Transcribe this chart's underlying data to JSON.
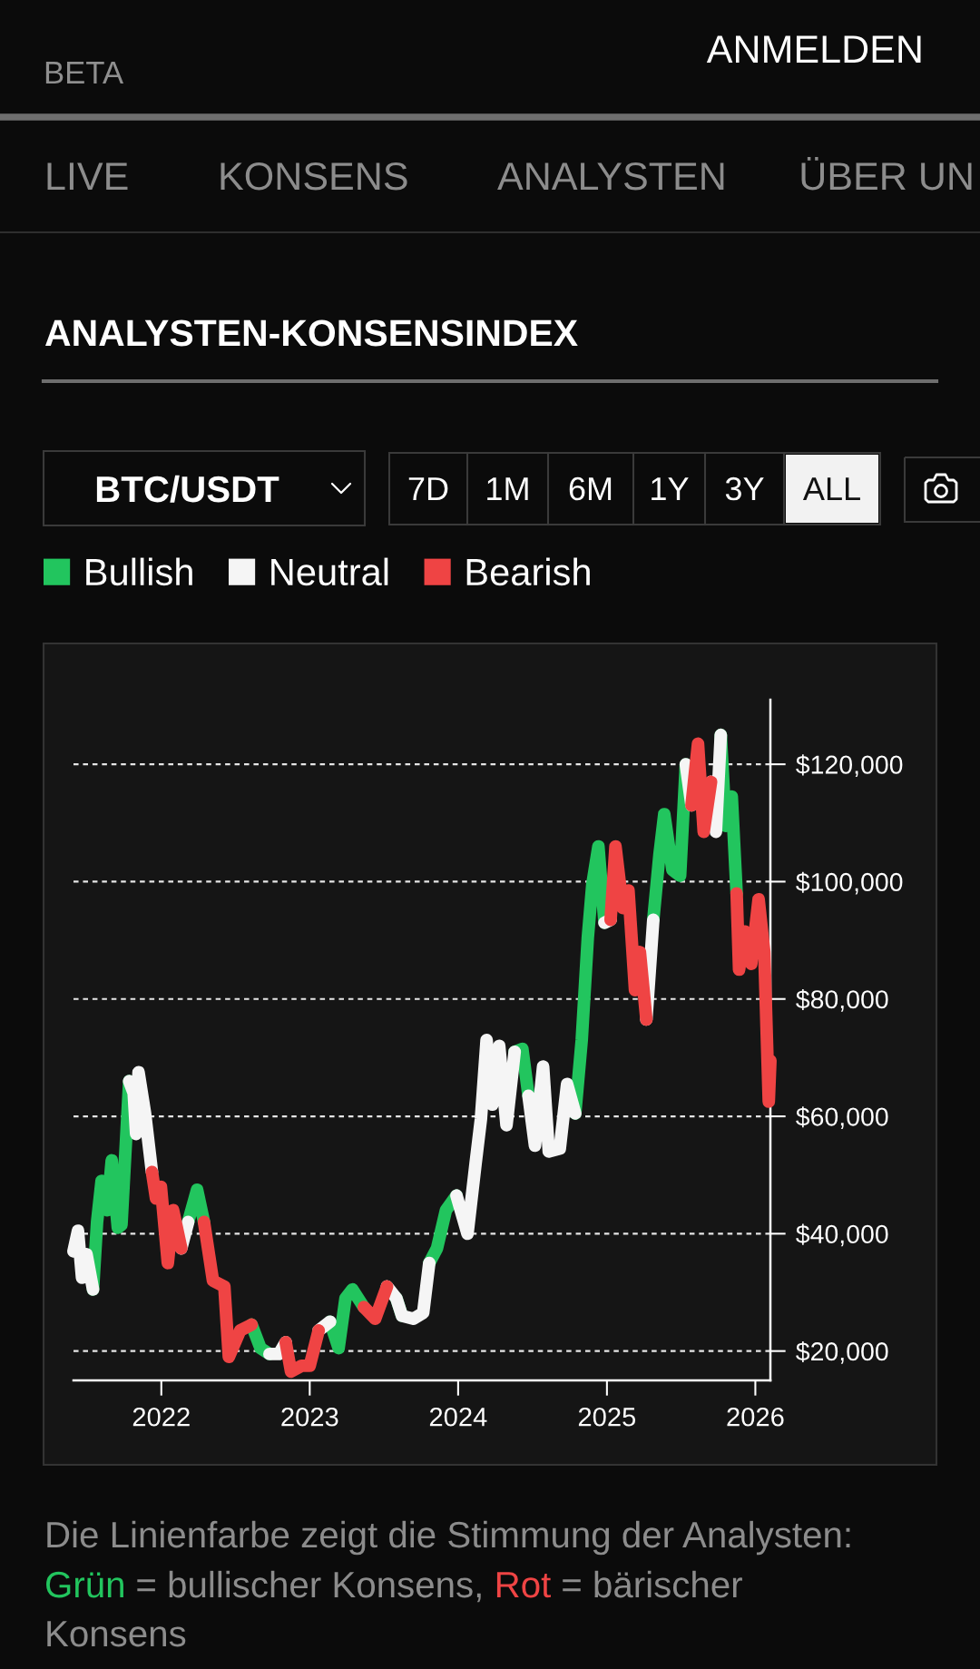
{
  "chart_data": {
    "type": "line",
    "title": "ANALYSTEN-KONSENSINDEX",
    "annotations": [
      "BETA",
      "ANMELDEN",
      "LIVE",
      "KONSENS",
      "ANALYSTEN",
      "ÜBER UN",
      "BTC/USDT",
      "7D",
      "1M",
      "6M",
      "1Y",
      "3Y",
      "ALL",
      "Die Linienfarbe zeigt die Stimmung der Analysten:",
      "Grün",
      "= bullischer Konsens,",
      "Rot",
      "= bärischer",
      "Konsens"
    ],
    "x": [
      "2021-05-30",
      "2021-06-10",
      "2021-06-20",
      "2021-07-01",
      "2021-07-17",
      "2021-07-27",
      "2021-08-07",
      "2021-08-21",
      "2021-09-01",
      "2021-09-16",
      "2021-09-25",
      "2021-10-14",
      "2021-10-25",
      "2021-10-31",
      "2021-11-06",
      "2021-11-22",
      "2021-12-09",
      "2021-12-19",
      "2021-12-31",
      "2022-01-17",
      "2022-01-30",
      "2022-02-19",
      "2022-03-08",
      "2022-03-30",
      "2022-04-16",
      "2022-05-08",
      "2022-06-05",
      "2022-06-16",
      "2022-07-14",
      "2022-08-11",
      "2022-09-02",
      "2022-09-24",
      "2022-10-17",
      "2022-11-03",
      "2022-11-16",
      "2022-12-12",
      "2023-01-01",
      "2023-01-23",
      "2023-02-20",
      "2023-03-13",
      "2023-03-30",
      "2023-04-16",
      "2023-05-14",
      "2023-06-11",
      "2023-07-10",
      "2023-08-02",
      "2023-08-16",
      "2023-09-13",
      "2023-10-07",
      "2023-10-22",
      "2023-11-10",
      "2023-12-02",
      "2023-12-28",
      "2024-01-24",
      "2024-02-13",
      "2024-02-26",
      "2024-03-11",
      "2024-03-25",
      "2024-04-11",
      "2024-04-29",
      "2024-05-19",
      "2024-06-07",
      "2024-06-22",
      "2024-07-08",
      "2024-07-28",
      "2024-08-11",
      "2024-09-07",
      "2024-09-25",
      "2024-10-15",
      "2024-10-31",
      "2024-11-15",
      "2024-11-26",
      "2024-12-11",
      "2024-12-26",
      "2025-01-10",
      "2025-01-22",
      "2025-02-09",
      "2025-02-23",
      "2025-03-11",
      "2025-03-23",
      "2025-04-08",
      "2025-04-25",
      "2025-05-10",
      "2025-05-22",
      "2025-06-11",
      "2025-06-30",
      "2025-07-14",
      "2025-07-28",
      "2025-08-13",
      "2025-08-27",
      "2025-09-14",
      "2025-09-26",
      "2025-10-08",
      "2025-10-20",
      "2025-11-04",
      "2025-11-16",
      "2025-11-22",
      "2025-12-06",
      "2025-12-22",
      "2026-01-09",
      "2026-01-23",
      "2026-02-03",
      "2026-02-07"
    ],
    "series": [
      {
        "name": "Bullish",
        "color": "#22c55e",
        "values": [
          null,
          null,
          null,
          null,
          30500,
          42000,
          49000,
          44000,
          52500,
          41000,
          41500,
          66000,
          null,
          null,
          null,
          null,
          null,
          null,
          null,
          null,
          null,
          null,
          42000,
          47500,
          42000,
          null,
          null,
          null,
          null,
          24500,
          20500,
          19500,
          null,
          null,
          null,
          null,
          null,
          null,
          25000,
          20500,
          29000,
          30500,
          27500,
          null,
          null,
          29000,
          26000,
          null,
          null,
          35000,
          37500,
          44000,
          46500,
          null,
          null,
          null,
          null,
          null,
          null,
          null,
          71000,
          71500,
          63500,
          null,
          null,
          null,
          null,
          null,
          60500,
          73000,
          90500,
          99500,
          106000,
          93000,
          null,
          null,
          null,
          null,
          null,
          null,
          null,
          93500,
          104500,
          111500,
          102000,
          101000,
          120000,
          null,
          null,
          null,
          null,
          null,
          125000,
          109500,
          114500,
          98000,
          null,
          null,
          null,
          null,
          null,
          null,
          null
        ]
      },
      {
        "name": "Neutral",
        "color": "#f5f5f5",
        "values": [
          37000,
          40500,
          32500,
          36500,
          30500,
          null,
          null,
          null,
          null,
          null,
          null,
          66000,
          64000,
          57000,
          67500,
          60500,
          50500,
          null,
          null,
          null,
          null,
          37500,
          42000,
          null,
          null,
          null,
          null,
          null,
          null,
          null,
          null,
          19500,
          19500,
          21500,
          null,
          null,
          null,
          23500,
          25000,
          null,
          null,
          null,
          null,
          null,
          31000,
          29000,
          26000,
          25500,
          26500,
          35000,
          null,
          null,
          46500,
          40000,
          52000,
          59500,
          73000,
          62000,
          72000,
          58500,
          71000,
          null,
          63500,
          55000,
          68500,
          54000,
          54500,
          65500,
          60500,
          null,
          null,
          null,
          null,
          93000,
          93500,
          null,
          null,
          null,
          null,
          null,
          76500,
          93500,
          null,
          null,
          null,
          null,
          120000,
          113000,
          null,
          null,
          117000,
          108500,
          125000,
          null,
          null,
          null,
          null,
          null,
          null,
          null,
          null,
          null,
          null
        ]
      },
      {
        "name": "Bearish",
        "color": "#ef4444",
        "values": [
          null,
          null,
          null,
          null,
          null,
          null,
          null,
          null,
          null,
          null,
          null,
          null,
          null,
          null,
          null,
          null,
          50500,
          46000,
          48000,
          35000,
          44000,
          37500,
          null,
          null,
          42000,
          32000,
          31000,
          19000,
          23500,
          24500,
          null,
          null,
          null,
          21500,
          16500,
          17500,
          17500,
          23500,
          null,
          null,
          null,
          null,
          27500,
          25500,
          31000,
          null,
          null,
          null,
          null,
          null,
          null,
          null,
          null,
          null,
          null,
          null,
          null,
          null,
          null,
          null,
          null,
          null,
          null,
          null,
          null,
          null,
          null,
          null,
          null,
          null,
          null,
          null,
          null,
          null,
          93500,
          106000,
          95500,
          98500,
          81500,
          88000,
          76500,
          null,
          null,
          null,
          null,
          null,
          null,
          113000,
          123500,
          108500,
          117000,
          null,
          null,
          null,
          null,
          98000,
          85000,
          91500,
          86000,
          97000,
          88000,
          62500,
          69500
        ]
      }
    ],
    "xlim": [
      "2021-05-30",
      "2026-02-07"
    ],
    "xticks": [
      "2022",
      "2023",
      "2024",
      "2025",
      "2026"
    ],
    "ylim": [
      15000,
      131000
    ],
    "yticks": [
      {
        "value": 20000,
        "label": "$20,000"
      },
      {
        "value": 40000,
        "label": "$40,000"
      },
      {
        "value": 60000,
        "label": "$60,000"
      },
      {
        "value": 80000,
        "label": "$80,000"
      },
      {
        "value": 100000,
        "label": "$100,000"
      },
      {
        "value": 120000,
        "label": "$120,000"
      }
    ],
    "grid": "y",
    "legend": "top left"
  }
}
